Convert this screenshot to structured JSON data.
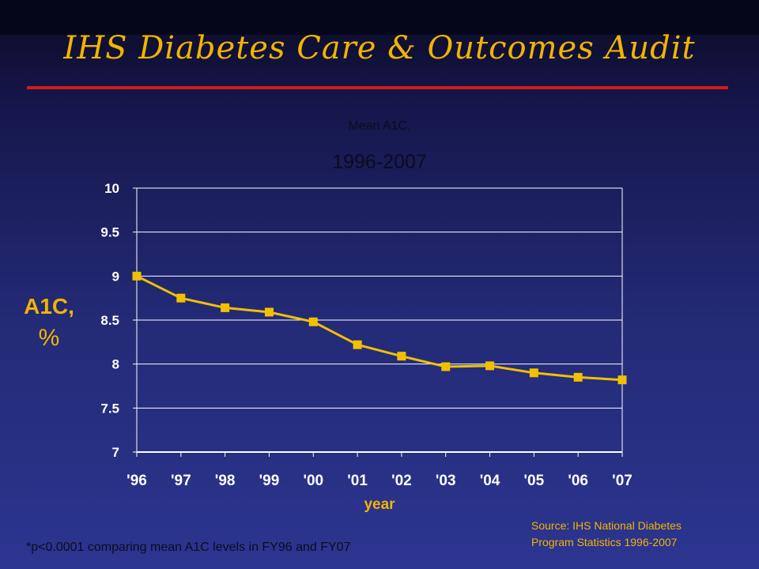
{
  "slide": {
    "title": "IHS Diabetes Care & Outcomes Audit",
    "footnote": "*p<0.0001 comparing mean A1C levels in FY96 and FY07",
    "source_line1": "Source: IHS National Diabetes",
    "source_line2": "Program Statistics 1996-2007"
  },
  "colors": {
    "title": "#f2b400",
    "rule": "#d41a1a",
    "series": "#f2c000",
    "marker": "#f2c000",
    "grid": "#ffffff",
    "tick_text": "#ffffff"
  },
  "chart_data": {
    "type": "line",
    "title": "Mean A1C,",
    "subtitle": "1996-2007",
    "ylabel": "A1C,",
    "ylabel_unit": "%",
    "xlabel": "year",
    "categories": [
      "'96",
      "'97",
      "'98",
      "'99",
      "'00",
      "'01",
      "'02",
      "'03",
      "'04",
      "'05",
      "'06",
      "'07"
    ],
    "series": [
      {
        "values": [
          9.0,
          8.75,
          8.64,
          8.59,
          8.48,
          8.22,
          8.09,
          7.97,
          7.98,
          7.9,
          7.85,
          7.82
        ]
      }
    ],
    "ylim": [
      7,
      10
    ],
    "yticks": [
      "7",
      "7.5",
      "8",
      "8.5",
      "9",
      "9.5",
      "10"
    ],
    "grid": true,
    "legend": "none",
    "marker": "square"
  }
}
